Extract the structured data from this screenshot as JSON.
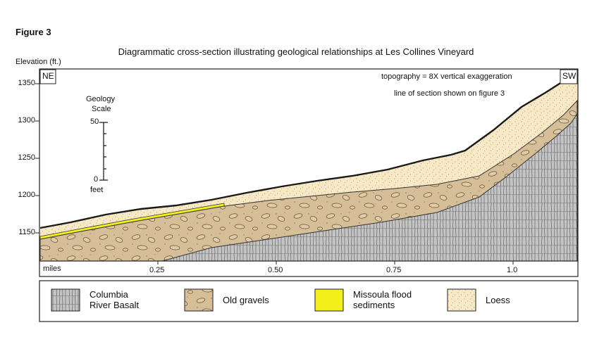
{
  "figure_label": "Figure 3",
  "title": "Diagrammatic cross-section illustrating geological relationships at Les Collines Vineyard",
  "y_axis": {
    "title": "Elevation (ft.)",
    "ticks": [
      "1350",
      "1300",
      "1250",
      "1200",
      "1150"
    ]
  },
  "x_axis": {
    "label": "miles",
    "ticks": [
      "0.25",
      "0.50",
      "0.75",
      "1.0"
    ]
  },
  "orientation": {
    "left": "NE",
    "right": "SW"
  },
  "notes": {
    "exaggeration": "topography =  8X vertical exaggeration",
    "section": "line of section shown on figure 3"
  },
  "geology_scale": {
    "title_line1": "Geology",
    "title_line2": "Scale",
    "top_value": "50",
    "bottom_value": "0",
    "unit": "feet"
  },
  "legend": [
    {
      "line1": "Columbia",
      "line2": "River Basalt",
      "pattern": "basalt"
    },
    {
      "line1": "Old gravels",
      "line2": "",
      "pattern": "gravel"
    },
    {
      "line1": "Missoula flood",
      "line2": "sediments",
      "pattern": "missoula"
    },
    {
      "line1": "Loess",
      "line2": "",
      "pattern": "loess"
    }
  ],
  "colors": {
    "loess": "#f7e8c6",
    "gravel": "#d6bf98",
    "missoula": "#f2ef1a",
    "basalt": "#bfbfbf",
    "frame": "#222222"
  }
}
